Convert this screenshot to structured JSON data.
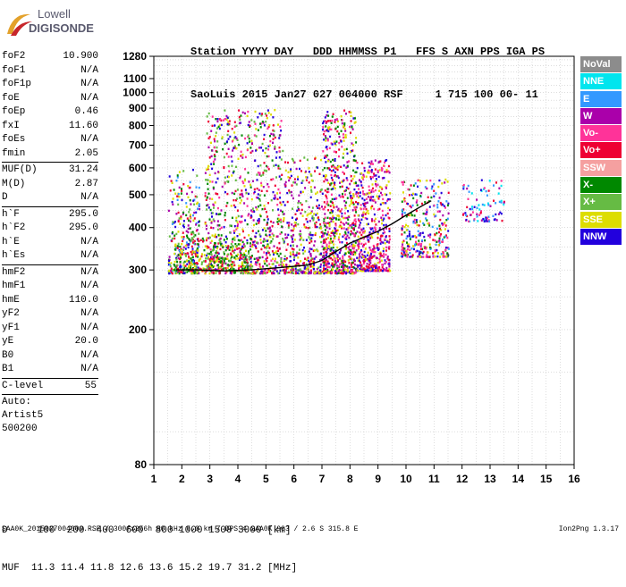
{
  "logo": {
    "line1": "Lowell",
    "line2": "DIGISONDE"
  },
  "header": {
    "line1": "Station YYYY DAY   DDD HHMMSS P1   FFS S AXN PPS IGA PS",
    "line2": "SaoLuis 2015 Jan27 027 004000 RSF     1 715 100 00- 11"
  },
  "params": {
    "group1": [
      {
        "label": "foF2",
        "value": "10.900"
      },
      {
        "label": "foF1",
        "value": "N/A"
      },
      {
        "label": "foF1p",
        "value": "N/A"
      },
      {
        "label": "foE",
        "value": "N/A"
      },
      {
        "label": "foEp",
        "value": "0.46"
      },
      {
        "label": "fxI",
        "value": "11.60"
      },
      {
        "label": "foEs",
        "value": "N/A"
      },
      {
        "label": "fmin",
        "value": "2.05"
      }
    ],
    "group2": [
      {
        "label": "MUF(D)",
        "value": "31.24"
      },
      {
        "label": "M(D)",
        "value": "2.87"
      },
      {
        "label": "D",
        "value": "N/A"
      }
    ],
    "group3": [
      {
        "label": "h`F",
        "value": "295.0"
      },
      {
        "label": "h`F2",
        "value": "295.0"
      },
      {
        "label": "h`E",
        "value": "N/A"
      },
      {
        "label": "h`Es",
        "value": "N/A"
      }
    ],
    "group4": [
      {
        "label": "hmF2",
        "value": "N/A"
      },
      {
        "label": "hmF1",
        "value": "N/A"
      },
      {
        "label": "hmE",
        "value": "110.0"
      },
      {
        "label": "yF2",
        "value": "N/A"
      },
      {
        "label": "yF1",
        "value": "N/A"
      },
      {
        "label": "yE",
        "value": "20.0"
      },
      {
        "label": "B0",
        "value": "N/A"
      },
      {
        "label": "B1",
        "value": "N/A"
      }
    ],
    "clevel": {
      "label": "C-level",
      "value": "55"
    },
    "auto": [
      "Auto:",
      "Artist5",
      "500200"
    ]
  },
  "bottom": {
    "line1": "D     100  200  400  600  800 1000 1500 3000 [km]",
    "line2": "MUF  11.3 11.4 11.8 12.6 13.6 15.2 19.7 31.2 [MHz]"
  },
  "footer": {
    "left": "SAA0K_2015027004000.RSF / 300fx256h 50 kHz 5.0 km / DPS-4 SAA0K 903 / 2.6 S 315.8 E",
    "right": "Ion2Png 1.3.17"
  },
  "legend": [
    {
      "label": "NoVal",
      "color": "#8c8c8c"
    },
    {
      "label": "NNE",
      "color": "#00e5ee"
    },
    {
      "label": "E",
      "color": "#3399ff"
    },
    {
      "label": "W",
      "color": "#aa00aa"
    },
    {
      "label": "Vo-",
      "color": "#ff3399"
    },
    {
      "label": "Vo+",
      "color": "#ee0033"
    },
    {
      "label": "SSW",
      "color": "#f5a0a0"
    },
    {
      "label": "X-",
      "color": "#008800"
    },
    {
      "label": "X+",
      "color": "#66bb44"
    },
    {
      "label": "SSE",
      "color": "#dddd00"
    },
    {
      "label": "NNW",
      "color": "#2200dd"
    }
  ],
  "chart_data": {
    "type": "scatter",
    "xlim": [
      1,
      16
    ],
    "ylim": [
      80,
      1280
    ],
    "y_scale": "log",
    "xticks": [
      1,
      2,
      3,
      4,
      5,
      6,
      7,
      8,
      9,
      10,
      11,
      12,
      13,
      14,
      15,
      16
    ],
    "yticks": [
      80,
      200,
      300,
      400,
      500,
      600,
      700,
      800,
      900,
      1000,
      1100,
      1280
    ],
    "grid": true,
    "trace": {
      "name": "h`F2 profile",
      "color": "#000000",
      "x": [
        1.8,
        2.5,
        3.5,
        4.5,
        5.5,
        6.5,
        7.0,
        7.5,
        8.0,
        8.5,
        9.0,
        9.5,
        10.0,
        10.5,
        10.9
      ],
      "y": [
        300,
        300,
        298,
        300,
        305,
        310,
        320,
        340,
        360,
        375,
        390,
        410,
        435,
        460,
        480
      ]
    },
    "clusters": [
      {
        "x": [
          1.5,
          2.6
        ],
        "y": [
          295,
          600
        ],
        "n": 260,
        "colors": [
          "#ee0033",
          "#dddd00",
          "#aa00aa",
          "#2200dd",
          "#008800",
          "#3399ff",
          "#66bb44"
        ]
      },
      {
        "x": [
          2.8,
          5.6
        ],
        "y": [
          295,
          900
        ],
        "n": 900,
        "colors": [
          "#ee0033",
          "#dddd00",
          "#aa00aa",
          "#2200dd",
          "#ff3399",
          "#66bb44",
          "#008800"
        ]
      },
      {
        "x": [
          5.6,
          7.0
        ],
        "y": [
          295,
          650
        ],
        "n": 380,
        "colors": [
          "#ee0033",
          "#dddd00",
          "#aa00aa",
          "#2200dd",
          "#66bb44"
        ]
      },
      {
        "x": [
          7.0,
          8.2
        ],
        "y": [
          295,
          900
        ],
        "n": 700,
        "colors": [
          "#ee0033",
          "#ff3399",
          "#aa00aa",
          "#2200dd",
          "#dddd00",
          "#008800"
        ]
      },
      {
        "x": [
          8.2,
          9.4
        ],
        "y": [
          300,
          640
        ],
        "n": 500,
        "colors": [
          "#ee0033",
          "#ff3399",
          "#aa00aa",
          "#2200dd",
          "#dddd00"
        ]
      },
      {
        "x": [
          9.8,
          11.5
        ],
        "y": [
          330,
          560
        ],
        "n": 320,
        "colors": [
          "#ee0033",
          "#ff3399",
          "#aa00aa",
          "#2200dd",
          "#dddd00",
          "#3399ff",
          "#008800"
        ]
      },
      {
        "x": [
          12.0,
          13.5
        ],
        "y": [
          420,
          560
        ],
        "n": 90,
        "colors": [
          "#ee0033",
          "#ff3399",
          "#aa00aa",
          "#3399ff",
          "#00e5ee",
          "#2200dd"
        ]
      },
      {
        "x": [
          1.7,
          4.5
        ],
        "y": [
          300,
          380
        ],
        "n": 300,
        "colors": [
          "#dddd00",
          "#008800",
          "#66bb44",
          "#ee0033"
        ]
      }
    ]
  }
}
